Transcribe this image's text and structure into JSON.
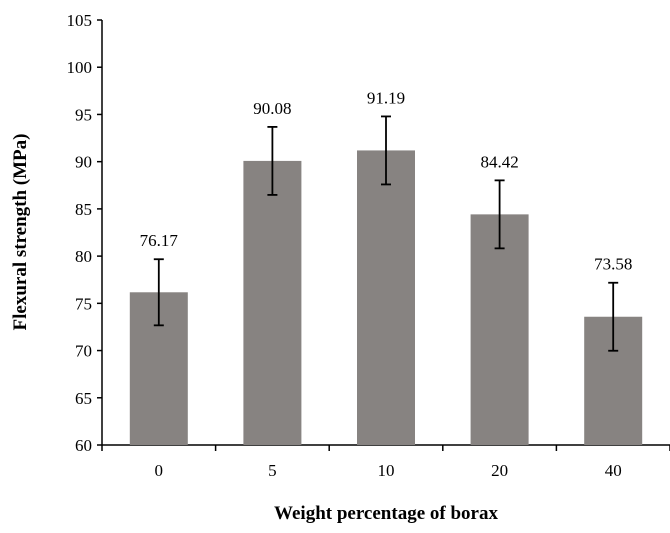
{
  "chart_data": {
    "type": "bar",
    "categories": [
      "0",
      "5",
      "10",
      "20",
      "40"
    ],
    "values": [
      76.17,
      90.08,
      91.19,
      84.42,
      73.58
    ],
    "data_labels": [
      "76.17",
      "90.08",
      "91.19",
      "84.42",
      "73.58"
    ],
    "error": [
      3.5,
      3.6,
      3.6,
      3.6,
      3.6
    ],
    "xlabel": "Weight percentage of borax",
    "ylabel": "Flexural strength (MPa)",
    "ylim": [
      60,
      105
    ],
    "yticks": [
      60,
      65,
      70,
      75,
      80,
      85,
      90,
      95,
      100,
      105
    ],
    "grid": false,
    "colors": {
      "bar": "#878381",
      "axis": "#000000"
    }
  }
}
